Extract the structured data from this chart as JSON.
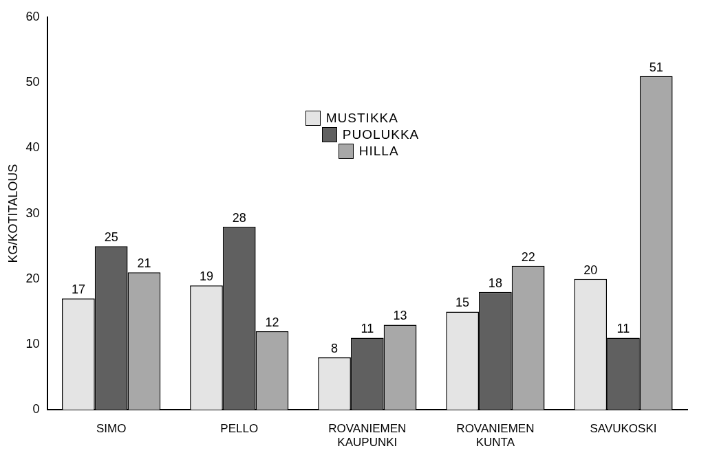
{
  "chart_data": {
    "type": "bar",
    "ylabel": "KG/KOTITALOUS",
    "categories": [
      "SIMO",
      "PELLO",
      "ROVANIEMEN KAUPUNKI",
      "ROVANIEMEN KUNTA",
      "SAVUKOSKI"
    ],
    "series": [
      {
        "name": "MUSTIKKA",
        "color": "#e4e4e4",
        "values": [
          17,
          19,
          8,
          15,
          20
        ]
      },
      {
        "name": "PUOLUKKA",
        "color": "#606060",
        "values": [
          25,
          28,
          11,
          18,
          11
        ]
      },
      {
        "name": "HILLA",
        "color": "#a8a8a8",
        "values": [
          21,
          12,
          13,
          22,
          51
        ]
      }
    ],
    "ylim": [
      0,
      60
    ],
    "yticks": [
      0,
      10,
      20,
      30,
      40,
      50,
      60
    ],
    "grid": false,
    "legend": "top",
    "data_labels": true
  }
}
